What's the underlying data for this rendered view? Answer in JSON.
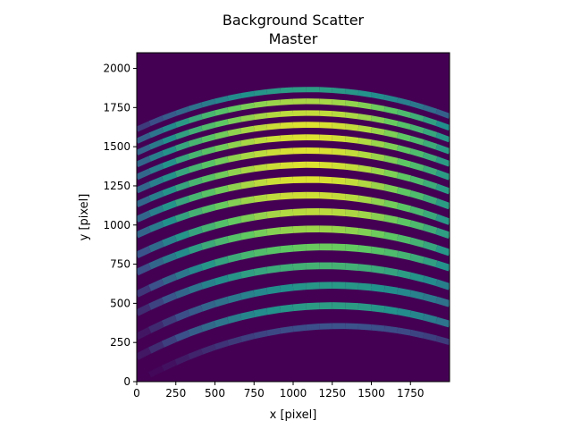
{
  "chart_data": {
    "type": "heatmap",
    "title": "Background Scatter",
    "subtitle": "Master",
    "xlabel": "x [pixel]",
    "ylabel": "y [pixel]",
    "xlim": [
      0,
      2000
    ],
    "ylim": [
      0,
      2100
    ],
    "xticks": [
      0,
      250,
      500,
      750,
      1000,
      1250,
      1500,
      1750
    ],
    "yticks": [
      0,
      250,
      500,
      750,
      1000,
      1250,
      1500,
      1750,
      2000
    ],
    "colormap": "viridis",
    "background_color": "#440154",
    "grid": false,
    "orders": [
      {
        "y_peak": 1865,
        "x_peak": 1100,
        "curvature": 0.00021,
        "width": 34,
        "intensity": 0.6
      },
      {
        "y_peak": 1790,
        "x_peak": 1100,
        "curvature": 0.00021,
        "width": 36,
        "intensity": 0.92
      },
      {
        "y_peak": 1715,
        "x_peak": 1100,
        "curvature": 0.00021,
        "width": 36,
        "intensity": 0.96
      },
      {
        "y_peak": 1640,
        "x_peak": 1100,
        "curvature": 0.00021,
        "width": 38,
        "intensity": 1.0
      },
      {
        "y_peak": 1560,
        "x_peak": 1100,
        "curvature": 0.00021,
        "width": 38,
        "intensity": 1.0
      },
      {
        "y_peak": 1475,
        "x_peak": 1100,
        "curvature": 0.00021,
        "width": 40,
        "intensity": 1.0
      },
      {
        "y_peak": 1385,
        "x_peak": 1100,
        "curvature": 0.00021,
        "width": 40,
        "intensity": 1.0
      },
      {
        "y_peak": 1290,
        "x_peak": 1100,
        "curvature": 0.00021,
        "width": 42,
        "intensity": 1.0
      },
      {
        "y_peak": 1190,
        "x_peak": 1100,
        "curvature": 0.00021,
        "width": 42,
        "intensity": 0.98
      },
      {
        "y_peak": 1085,
        "x_peak": 1150,
        "curvature": 0.00021,
        "width": 44,
        "intensity": 0.95
      },
      {
        "y_peak": 975,
        "x_peak": 1150,
        "curvature": 0.00021,
        "width": 44,
        "intensity": 0.9
      },
      {
        "y_peak": 860,
        "x_peak": 1200,
        "curvature": 0.00021,
        "width": 44,
        "intensity": 0.82
      },
      {
        "y_peak": 740,
        "x_peak": 1200,
        "curvature": 0.00021,
        "width": 44,
        "intensity": 0.7
      },
      {
        "y_peak": 615,
        "x_peak": 1250,
        "curvature": 0.00021,
        "width": 44,
        "intensity": 0.58
      },
      {
        "y_peak": 485,
        "x_peak": 1250,
        "curvature": 0.00021,
        "width": 44,
        "intensity": 0.6
      },
      {
        "y_peak": 355,
        "x_peak": 1300,
        "curvature": 0.00021,
        "width": 38,
        "intensity": 0.3
      }
    ]
  }
}
